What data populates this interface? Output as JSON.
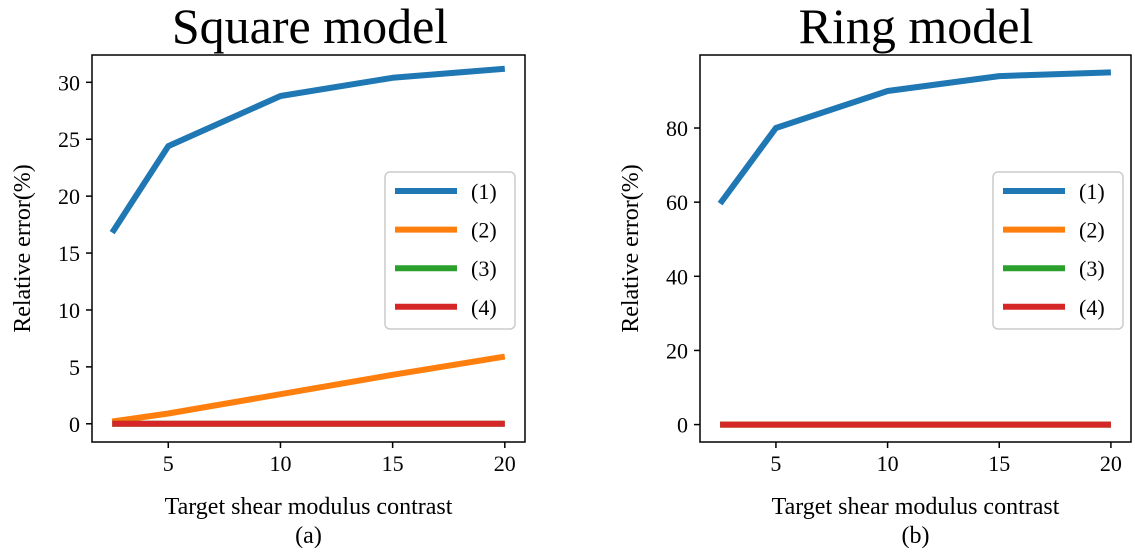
{
  "chart_data": [
    {
      "type": "line",
      "title": "Square model",
      "xlabel": "Target shear modulus contrast",
      "ylabel": "Relative error(%)",
      "panel_label": "(a)",
      "x": [
        2.5,
        5,
        10,
        15,
        20
      ],
      "xlim": [
        1.6,
        20.9
      ],
      "ylim": [
        -1.6,
        32.4
      ],
      "xticks": [
        5,
        10,
        15,
        20
      ],
      "yticks": [
        0,
        5,
        10,
        15,
        20,
        25,
        30
      ],
      "legend_position": "center-right",
      "series": [
        {
          "name": "(1)",
          "color": "#1f77b4",
          "values": [
            16.8,
            24.4,
            28.8,
            30.4,
            31.2
          ]
        },
        {
          "name": "(2)",
          "color": "#ff7f0e",
          "values": [
            0.2,
            0.9,
            2.6,
            4.3,
            5.9
          ]
        },
        {
          "name": "(3)",
          "color": "#2ca02c",
          "values": [
            0,
            0,
            0,
            0,
            0
          ]
        },
        {
          "name": "(4)",
          "color": "#d62728",
          "values": [
            0,
            0,
            0,
            0,
            0
          ]
        }
      ]
    },
    {
      "type": "line",
      "title": "Ring model",
      "xlabel": "Target shear modulus contrast",
      "ylabel": "Relative error(%)",
      "panel_label": "(b)",
      "x": [
        2.5,
        5,
        10,
        15,
        20
      ],
      "xlim": [
        1.6,
        20.9
      ],
      "ylim": [
        -4.7,
        99.7
      ],
      "xticks": [
        5,
        10,
        15,
        20
      ],
      "yticks": [
        0,
        20,
        40,
        60,
        80
      ],
      "legend_position": "center-right",
      "series": [
        {
          "name": "(1)",
          "color": "#1f77b4",
          "values": [
            59.6,
            80,
            90,
            94,
            95
          ]
        },
        {
          "name": "(2)",
          "color": "#ff7f0e",
          "values": [
            0,
            0,
            0,
            0,
            0
          ]
        },
        {
          "name": "(3)",
          "color": "#2ca02c",
          "values": [
            0,
            0,
            0,
            0,
            0
          ]
        },
        {
          "name": "(4)",
          "color": "#d62728",
          "values": [
            0,
            0,
            0,
            0,
            0
          ]
        }
      ]
    }
  ]
}
